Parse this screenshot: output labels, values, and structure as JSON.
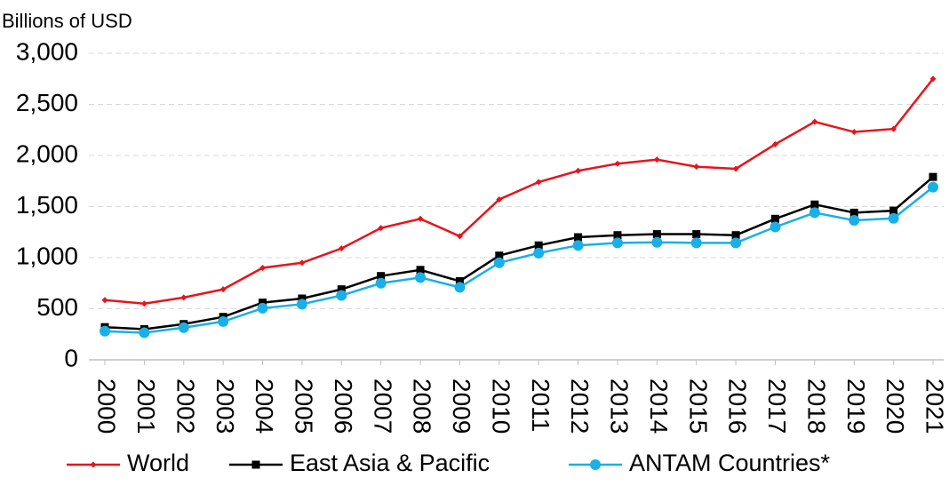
{
  "chart_data": {
    "type": "line",
    "y_label": "Billions of USD",
    "categories": [
      "2000",
      "2001",
      "2002",
      "2003",
      "2004",
      "2005",
      "2006",
      "2007",
      "2008",
      "2009",
      "2010",
      "2011",
      "2012",
      "2013",
      "2014",
      "2015",
      "2016",
      "2017",
      "2018",
      "2019",
      "2020",
      "2021"
    ],
    "series": [
      {
        "name": "World",
        "color": "#e8141b",
        "marker": "diamond",
        "values": [
          585,
          550,
          610,
          690,
          900,
          950,
          1090,
          1290,
          1380,
          1210,
          1570,
          1740,
          1850,
          1920,
          1960,
          1890,
          1870,
          2110,
          2330,
          2230,
          2260,
          2750
        ]
      },
      {
        "name": "East Asia & Pacific",
        "color": "#000000",
        "marker": "square",
        "values": [
          320,
          300,
          350,
          420,
          560,
          600,
          690,
          820,
          880,
          770,
          1020,
          1120,
          1200,
          1220,
          1230,
          1230,
          1220,
          1380,
          1520,
          1440,
          1460,
          1790
        ]
      },
      {
        "name": "ANTAM Countries*",
        "color": "#1aafe6",
        "marker": "circle",
        "values": [
          280,
          265,
          315,
          375,
          505,
          545,
          630,
          750,
          805,
          710,
          950,
          1045,
          1120,
          1145,
          1150,
          1145,
          1145,
          1300,
          1440,
          1365,
          1385,
          1690
        ]
      }
    ],
    "ylim": [
      0,
      3000
    ],
    "yticks": [
      0,
      500,
      {
        "value": 1000,
        "label": "1,000"
      },
      {
        "value": 1500,
        "label": "1,500"
      },
      {
        "value": 2000,
        "label": "2,000"
      },
      {
        "value": 2500,
        "label": "2,500"
      },
      {
        "value": 3000,
        "label": "3,000"
      }
    ],
    "grid": true,
    "legend": "bottom"
  }
}
